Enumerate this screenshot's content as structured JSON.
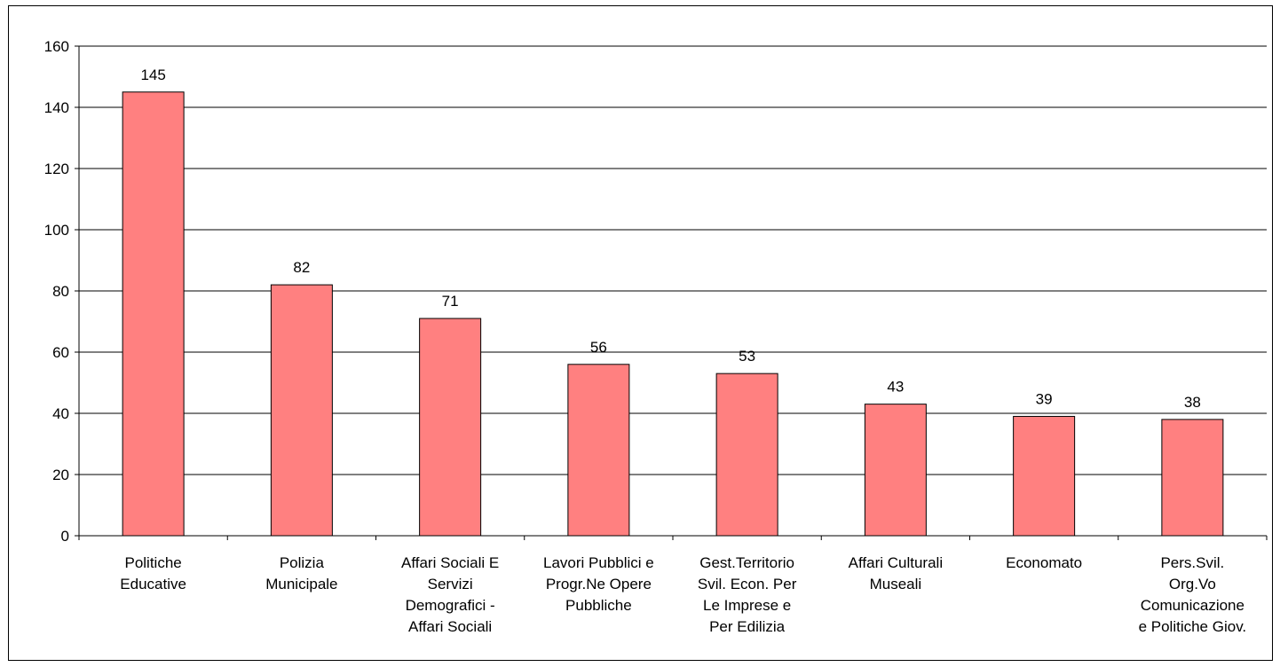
{
  "chart_data": {
    "type": "bar",
    "title": "",
    "xlabel": "",
    "ylabel": "",
    "ylim": [
      0,
      160
    ],
    "yticks": [
      0,
      20,
      40,
      60,
      80,
      100,
      120,
      140,
      160
    ],
    "grid": true,
    "legend": "none",
    "bar_color": "#FF8080",
    "categories": [
      [
        "Politiche",
        "Educative"
      ],
      [
        "Polizia",
        "Municipale"
      ],
      [
        "Affari Sociali E",
        "Servizi",
        "Demografici -",
        "Affari Sociali"
      ],
      [
        "Lavori Pubblici e",
        "Progr.Ne Opere",
        "Pubbliche"
      ],
      [
        "Gest.Territorio",
        "Svil. Econ. Per",
        "Le Imprese e",
        "Per Edilizia"
      ],
      [
        "Affari Culturali",
        "Museali"
      ],
      [
        "Economato"
      ],
      [
        "Pers.Svil.",
        "Org.Vo",
        "Comunicazione",
        "e Politiche Giov."
      ]
    ],
    "values": [
      145,
      82,
      71,
      56,
      53,
      43,
      39,
      38
    ],
    "data_labels": [
      "145",
      "82",
      "71",
      "56",
      "53",
      "43",
      "39",
      "38"
    ]
  }
}
